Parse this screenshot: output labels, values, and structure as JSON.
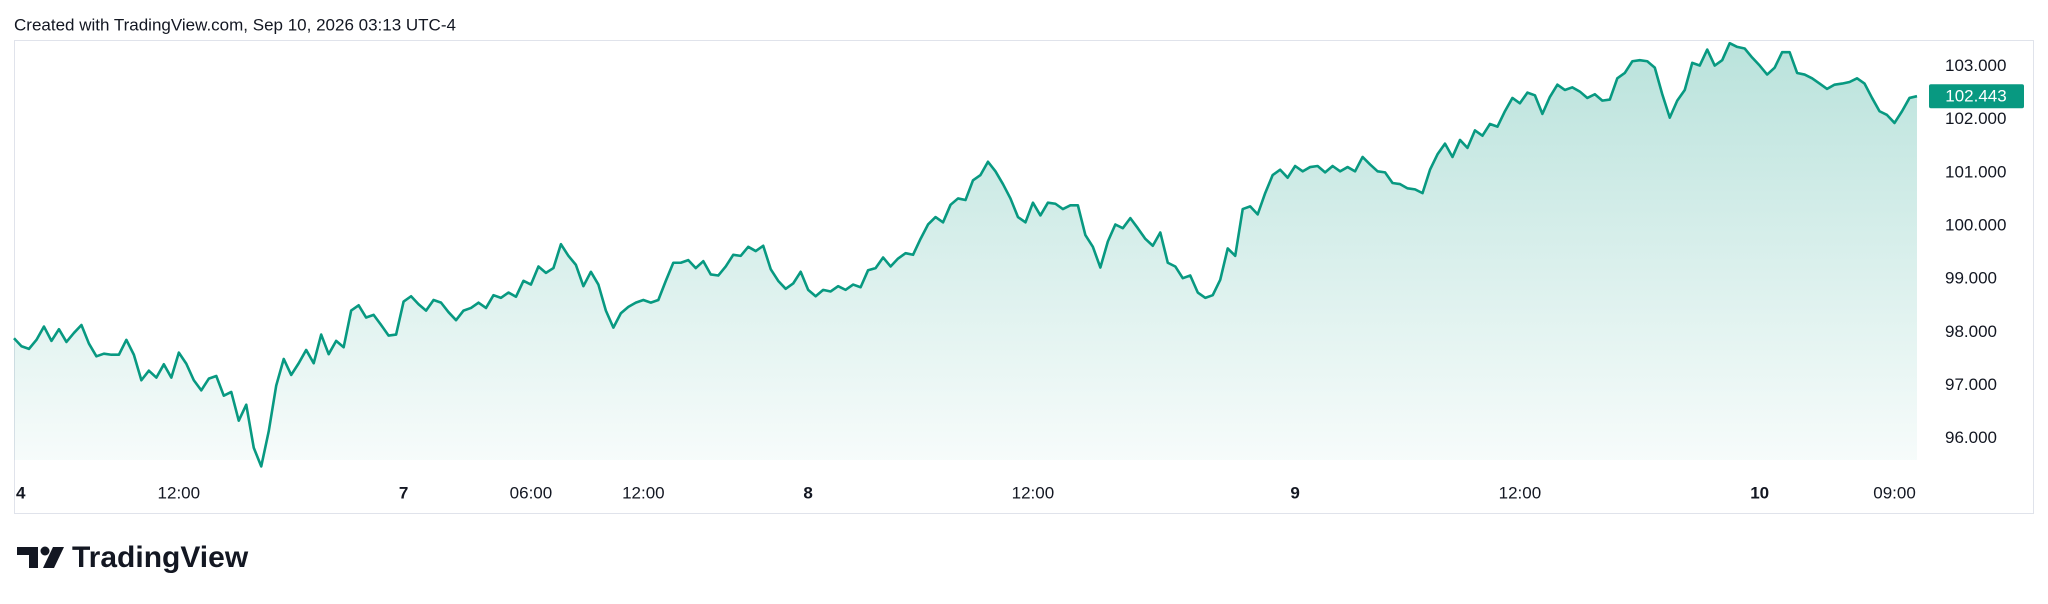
{
  "header": {
    "text": "Created with TradingView.com, Sep 10, 2026 03:13 UTC-4"
  },
  "chart_data": {
    "type": "area",
    "color": "#089981",
    "grid": false,
    "ylim": [
      95.6,
      103.5
    ],
    "yticks": [
      {
        "value": 96,
        "label": "96.000"
      },
      {
        "value": 97,
        "label": "97.000"
      },
      {
        "value": 98,
        "label": "98.000"
      },
      {
        "value": 99,
        "label": "99.000"
      },
      {
        "value": 100,
        "label": "100.000"
      },
      {
        "value": 101,
        "label": "101.000"
      },
      {
        "value": 102,
        "label": "102.000"
      },
      {
        "value": 103,
        "label": "103.000"
      }
    ],
    "xticks": [
      {
        "value": 0,
        "label": "4"
      },
      {
        "value": 22,
        "label": "12:00"
      },
      {
        "value": 52,
        "label": "7"
      },
      {
        "value": 69,
        "label": "06:00"
      },
      {
        "value": 84,
        "label": "12:00"
      },
      {
        "value": 106,
        "label": "8"
      },
      {
        "value": 136,
        "label": "12:00"
      },
      {
        "value": 171,
        "label": "9"
      },
      {
        "value": 201,
        "label": "12:00"
      },
      {
        "value": 233,
        "label": "10"
      },
      {
        "value": 251,
        "label": "09:00"
      }
    ],
    "values": [
      97.89,
      97.74,
      97.69,
      97.86,
      98.11,
      97.84,
      98.06,
      97.82,
      97.99,
      98.14,
      97.79,
      97.55,
      97.6,
      97.58,
      97.58,
      97.86,
      97.58,
      97.1,
      97.28,
      97.15,
      97.4,
      97.15,
      97.62,
      97.41,
      97.1,
      96.91,
      97.13,
      97.18,
      96.81,
      96.88,
      96.34,
      96.64,
      95.83,
      95.48,
      96.14,
      97.0,
      97.5,
      97.2,
      97.42,
      97.67,
      97.42,
      97.96,
      97.59,
      97.84,
      97.72,
      98.41,
      98.51,
      98.28,
      98.33,
      98.14,
      97.94,
      97.96,
      98.58,
      98.68,
      98.53,
      98.41,
      98.61,
      98.56,
      98.38,
      98.23,
      98.41,
      98.46,
      98.56,
      98.46,
      98.7,
      98.65,
      98.75,
      98.67,
      98.97,
      98.9,
      99.24,
      99.12,
      99.21,
      99.66,
      99.44,
      99.27,
      98.87,
      99.14,
      98.9,
      98.41,
      98.09,
      98.36,
      98.48,
      98.56,
      98.61,
      98.56,
      98.61,
      98.97,
      99.31,
      99.31,
      99.36,
      99.21,
      99.34,
      99.09,
      99.07,
      99.24,
      99.46,
      99.44,
      99.61,
      99.53,
      99.63,
      99.19,
      98.97,
      98.82,
      98.92,
      99.14,
      98.8,
      98.68,
      98.8,
      98.77,
      98.87,
      98.8,
      98.9,
      98.85,
      99.17,
      99.21,
      99.41,
      99.24,
      99.39,
      99.49,
      99.46,
      99.76,
      100.03,
      100.17,
      100.07,
      100.4,
      100.52,
      100.49,
      100.86,
      100.96,
      101.21,
      101.03,
      100.79,
      100.52,
      100.17,
      100.07,
      100.44,
      100.2,
      100.44,
      100.42,
      100.32,
      100.39,
      100.39,
      99.83,
      99.61,
      99.22,
      99.71,
      100.03,
      99.96,
      100.15,
      99.96,
      99.76,
      99.63,
      99.88,
      99.31,
      99.24,
      99.02,
      99.07,
      98.75,
      98.65,
      98.7,
      98.99,
      99.58,
      99.44,
      100.32,
      100.37,
      100.22,
      100.62,
      100.96,
      101.06,
      100.91,
      101.13,
      101.03,
      101.11,
      101.13,
      101.01,
      101.13,
      101.03,
      101.11,
      101.03,
      101.3,
      101.16,
      101.03,
      101.01,
      100.81,
      100.79,
      100.71,
      100.69,
      100.62,
      101.06,
      101.35,
      101.55,
      101.3,
      101.62,
      101.47,
      101.8,
      101.7,
      101.92,
      101.87,
      102.16,
      102.41,
      102.31,
      102.51,
      102.46,
      102.11,
      102.43,
      102.66,
      102.56,
      102.61,
      102.53,
      102.41,
      102.48,
      102.36,
      102.38,
      102.78,
      102.88,
      103.1,
      103.12,
      103.1,
      102.98,
      102.48,
      102.04,
      102.36,
      102.56,
      103.07,
      103.02,
      103.32,
      103.02,
      103.12,
      103.44,
      103.37,
      103.34,
      103.17,
      103.02,
      102.85,
      102.98,
      103.27,
      103.27,
      102.88,
      102.85,
      102.78,
      102.68,
      102.58,
      102.66,
      102.68,
      102.71,
      102.78,
      102.68,
      102.41,
      102.16,
      102.09,
      101.94,
      102.16,
      102.41,
      102.443
    ]
  },
  "footer": {
    "logo_text": "TradingView"
  }
}
